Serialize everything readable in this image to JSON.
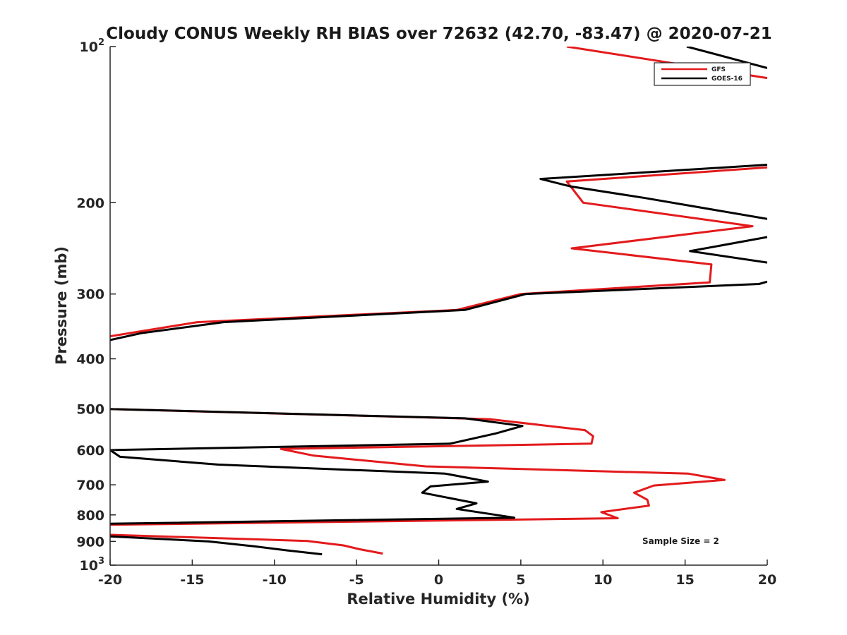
{
  "chart_data": {
    "type": "line",
    "title": "Cloudy CONUS Weekly RH BIAS over 72632 (42.70, -83.47) @ 2020-07-21",
    "xlabel": "Relative Humidity (%)",
    "ylabel": "Pressure (mb)",
    "xlim": [
      -20,
      20
    ],
    "ylim": [
      100,
      1000
    ],
    "y_scale": "log",
    "y_reversed": true,
    "x_ticks": [
      "-20",
      "-15",
      "-10",
      "-5",
      "0",
      "5",
      "10",
      "15",
      "20"
    ],
    "y_ticks": [
      {
        "value": 100,
        "base": "10",
        "exp": "2"
      },
      {
        "value": 200,
        "base": "200",
        "exp": ""
      },
      {
        "value": 300,
        "base": "300",
        "exp": ""
      },
      {
        "value": 400,
        "base": "400",
        "exp": ""
      },
      {
        "value": 500,
        "base": "500",
        "exp": ""
      },
      {
        "value": 600,
        "base": "600",
        "exp": ""
      },
      {
        "value": 700,
        "base": "700",
        "exp": ""
      },
      {
        "value": 800,
        "base": "800",
        "exp": ""
      },
      {
        "value": 900,
        "base": "900",
        "exp": ""
      },
      {
        "value": 1000,
        "base": "10",
        "exp": "3"
      }
    ],
    "grid": false,
    "legend_position": "top-right",
    "annotation": "Sample Size = 2",
    "series": [
      {
        "name": "GFS",
        "color": "#e31a1c",
        "segments": [
          [
            [
              7.8,
              100
            ],
            [
              20,
              115
            ]
          ],
          [
            [
              20,
              171
            ],
            [
              7.8,
              182
            ],
            [
              8.8,
              200
            ],
            [
              19.1,
              222
            ],
            [
              8.1,
              245
            ],
            [
              16.6,
              263
            ],
            [
              16.5,
              285
            ],
            [
              5,
              300
            ],
            [
              1.1,
              322
            ],
            [
              -14.7,
              340
            ],
            [
              -20,
              362
            ]
          ],
          [
            [
              -20,
              500
            ],
            [
              3.1,
              523
            ],
            [
              8.9,
              549
            ],
            [
              9.4,
              564
            ],
            [
              9.3,
              583
            ],
            [
              -9.6,
              597
            ],
            [
              -7.6,
              615
            ],
            [
              -0.8,
              645
            ],
            [
              15.2,
              666
            ],
            [
              17.4,
              685
            ],
            [
              13.1,
              702
            ],
            [
              11.9,
              725
            ],
            [
              12.7,
              748
            ],
            [
              12.8,
              768
            ],
            [
              9.9,
              790
            ],
            [
              10.9,
              812
            ],
            [
              -20,
              836
            ]
          ],
          [
            [
              -20,
              874
            ],
            [
              -8,
              898
            ],
            [
              -5.8,
              916
            ],
            [
              -4.8,
              932
            ],
            [
              -3.4,
              950
            ]
          ]
        ]
      },
      {
        "name": "GOES-16",
        "color": "#000000",
        "segments": [
          [
            [
              15.1,
              100
            ],
            [
              20,
              110
            ]
          ],
          [
            [
              20,
              169
            ],
            [
              6.2,
              180
            ],
            [
              8,
              186
            ],
            [
              12.6,
              196
            ],
            [
              20,
              215
            ]
          ],
          [
            [
              20,
              233
            ],
            [
              15.3,
              248
            ],
            [
              20,
              261
            ]
          ],
          [
            [
              20,
              284
            ],
            [
              19.5,
              287
            ],
            [
              5.3,
              300
            ],
            [
              1.6,
              322
            ],
            [
              -13.1,
              340
            ],
            [
              -18.1,
              357
            ],
            [
              -20,
              368
            ]
          ],
          [
            [
              -20,
              500
            ],
            [
              1.6,
              521
            ],
            [
              5.1,
              539
            ],
            [
              3.5,
              557
            ],
            [
              0.7,
              583
            ],
            [
              -20,
              600
            ],
            [
              -19.4,
              618
            ],
            [
              -13.4,
              640
            ],
            [
              0.4,
              666
            ],
            [
              3,
              690
            ],
            [
              -0.5,
              705
            ],
            [
              -1,
              725
            ],
            [
              2.3,
              760
            ],
            [
              1.1,
              779
            ],
            [
              4.6,
              810
            ],
            [
              -20,
              832
            ]
          ],
          [
            [
              -20,
              880
            ],
            [
              -14,
              900
            ],
            [
              -11.2,
              920
            ],
            [
              -9.3,
              936
            ],
            [
              -7.1,
              953
            ]
          ]
        ]
      }
    ]
  }
}
